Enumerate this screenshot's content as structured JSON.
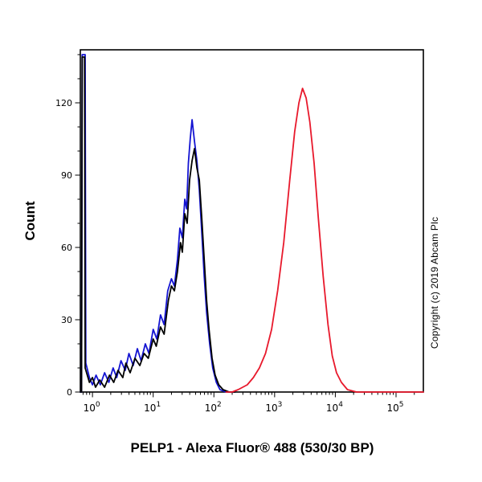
{
  "figure": {
    "ylabel": "Count",
    "xlabel": "PELP1 - Alexa Fluor® 488 (530/30 BP)",
    "copyright": "Copyright (c) 2019 Abcam Plc"
  },
  "chart_data": {
    "type": "line",
    "title": "",
    "xlabel": "PELP1 - Alexa Fluor® 488 (530/30 BP)",
    "ylabel": "Count",
    "x_scale": "log10",
    "xlim": [
      -0.2,
      5.45
    ],
    "ylim": [
      0,
      142
    ],
    "x_tick_base": "10",
    "x_major_ticks_exp": [
      0,
      1,
      2,
      3,
      4,
      5
    ],
    "y_major_ticks": [
      0,
      30,
      60,
      90,
      120
    ],
    "y_minor_step": 10,
    "grid": false,
    "legend": "none",
    "axis_color": "#000000",
    "series": [
      {
        "name": "blue",
        "color": "#1414d2",
        "width": 1.8,
        "points": [
          [
            -0.2,
            0
          ],
          [
            -0.18,
            0
          ],
          [
            -0.17,
            140
          ],
          [
            -0.12,
            140
          ],
          [
            -0.11,
            12
          ],
          [
            -0.05,
            6
          ],
          [
            0.0,
            3
          ],
          [
            0.06,
            7
          ],
          [
            0.13,
            3
          ],
          [
            0.2,
            8
          ],
          [
            0.27,
            4
          ],
          [
            0.34,
            10
          ],
          [
            0.4,
            6
          ],
          [
            0.47,
            13
          ],
          [
            0.54,
            9
          ],
          [
            0.6,
            16
          ],
          [
            0.67,
            11
          ],
          [
            0.74,
            18
          ],
          [
            0.8,
            13
          ],
          [
            0.87,
            20
          ],
          [
            0.93,
            16
          ],
          [
            1.0,
            26
          ],
          [
            1.06,
            22
          ],
          [
            1.12,
            32
          ],
          [
            1.18,
            28
          ],
          [
            1.24,
            42
          ],
          [
            1.3,
            47
          ],
          [
            1.35,
            44
          ],
          [
            1.4,
            55
          ],
          [
            1.44,
            68
          ],
          [
            1.48,
            64
          ],
          [
            1.52,
            80
          ],
          [
            1.55,
            76
          ],
          [
            1.58,
            95
          ],
          [
            1.61,
            105
          ],
          [
            1.64,
            113
          ],
          [
            1.68,
            104
          ],
          [
            1.72,
            96
          ],
          [
            1.76,
            84
          ],
          [
            1.8,
            66
          ],
          [
            1.84,
            48
          ],
          [
            1.88,
            33
          ],
          [
            1.93,
            20
          ],
          [
            1.98,
            10
          ],
          [
            2.04,
            4
          ],
          [
            2.1,
            1
          ],
          [
            2.2,
            0
          ],
          [
            2.35,
            0
          ]
        ]
      },
      {
        "name": "black",
        "color": "#000000",
        "width": 1.8,
        "points": [
          [
            -0.2,
            0
          ],
          [
            -0.18,
            0
          ],
          [
            -0.17,
            139
          ],
          [
            -0.13,
            139
          ],
          [
            -0.12,
            10
          ],
          [
            -0.05,
            4
          ],
          [
            0.0,
            6
          ],
          [
            0.05,
            2
          ],
          [
            0.12,
            5
          ],
          [
            0.2,
            2
          ],
          [
            0.28,
            7
          ],
          [
            0.35,
            4
          ],
          [
            0.42,
            9
          ],
          [
            0.5,
            6
          ],
          [
            0.55,
            12
          ],
          [
            0.62,
            8
          ],
          [
            0.7,
            14
          ],
          [
            0.78,
            11
          ],
          [
            0.85,
            16
          ],
          [
            0.92,
            14
          ],
          [
            1.0,
            22
          ],
          [
            1.05,
            19
          ],
          [
            1.12,
            27
          ],
          [
            1.18,
            24
          ],
          [
            1.25,
            38
          ],
          [
            1.3,
            44
          ],
          [
            1.35,
            42
          ],
          [
            1.4,
            50
          ],
          [
            1.45,
            62
          ],
          [
            1.48,
            58
          ],
          [
            1.52,
            74
          ],
          [
            1.56,
            70
          ],
          [
            1.6,
            88
          ],
          [
            1.64,
            96
          ],
          [
            1.68,
            101
          ],
          [
            1.72,
            93
          ],
          [
            1.76,
            88
          ],
          [
            1.8,
            72
          ],
          [
            1.84,
            55
          ],
          [
            1.88,
            38
          ],
          [
            1.92,
            26
          ],
          [
            1.97,
            14
          ],
          [
            2.02,
            7
          ],
          [
            2.08,
            3
          ],
          [
            2.15,
            1
          ],
          [
            2.25,
            0
          ],
          [
            2.35,
            0
          ]
        ]
      },
      {
        "name": "red",
        "color": "#e8192c",
        "width": 1.8,
        "points": [
          [
            2.2,
            0
          ],
          [
            2.3,
            0
          ],
          [
            2.4,
            1
          ],
          [
            2.55,
            3
          ],
          [
            2.65,
            6
          ],
          [
            2.75,
            10
          ],
          [
            2.85,
            16
          ],
          [
            2.95,
            26
          ],
          [
            3.05,
            42
          ],
          [
            3.15,
            62
          ],
          [
            3.25,
            88
          ],
          [
            3.33,
            108
          ],
          [
            3.4,
            120
          ],
          [
            3.46,
            126
          ],
          [
            3.52,
            122
          ],
          [
            3.58,
            112
          ],
          [
            3.65,
            95
          ],
          [
            3.72,
            72
          ],
          [
            3.8,
            48
          ],
          [
            3.88,
            28
          ],
          [
            3.95,
            15
          ],
          [
            4.02,
            8
          ],
          [
            4.1,
            4
          ],
          [
            4.2,
            1
          ],
          [
            4.35,
            0
          ],
          [
            5.45,
            0
          ]
        ]
      }
    ]
  }
}
